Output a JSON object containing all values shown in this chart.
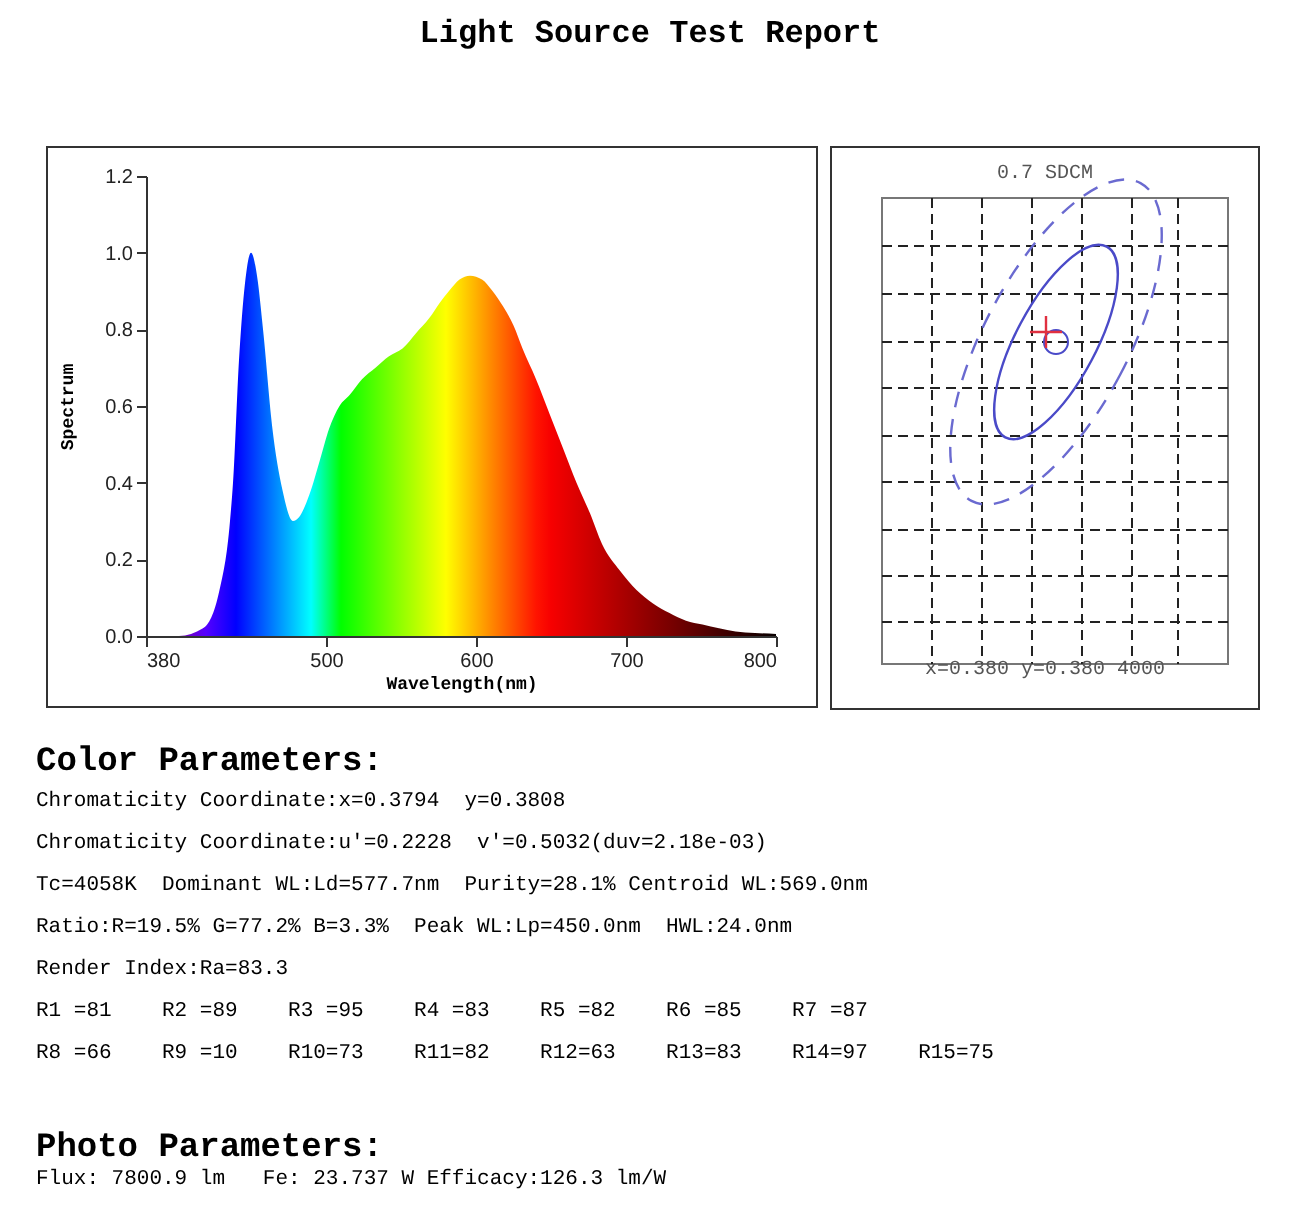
{
  "chart_data": [
    {
      "type": "area",
      "title": "Light Source Test Report",
      "xlabel": "Wavelength(nm)",
      "ylabel": "Spectrum",
      "x": [
        380,
        402,
        418,
        429,
        436,
        438,
        442,
        446,
        450,
        454,
        458,
        464,
        471,
        478,
        482,
        489,
        496,
        502,
        509,
        516,
        524,
        533,
        542,
        551,
        560,
        569,
        576,
        582,
        589,
        596,
        604,
        611,
        618,
        625,
        631,
        640,
        649,
        658,
        667,
        676,
        684,
        696,
        707,
        718,
        729,
        740,
        751,
        762,
        773,
        786,
        800
      ],
      "values": [
        0,
        0,
        0.02,
        0.12,
        0.3,
        0.4,
        0.72,
        0.92,
        1.0,
        0.94,
        0.8,
        0.55,
        0.38,
        0.3,
        0.31,
        0.37,
        0.46,
        0.54,
        0.6,
        0.63,
        0.67,
        0.7,
        0.73,
        0.75,
        0.79,
        0.83,
        0.87,
        0.9,
        0.93,
        0.94,
        0.93,
        0.9,
        0.86,
        0.81,
        0.75,
        0.67,
        0.58,
        0.49,
        0.4,
        0.32,
        0.24,
        0.17,
        0.12,
        0.085,
        0.06,
        0.04,
        0.03,
        0.02,
        0.012,
        0.008,
        0.005
      ],
      "xlim": [
        380,
        800
      ],
      "xticks": [
        380,
        500,
        600,
        700,
        800
      ],
      "ylim": [
        0,
        1.2
      ],
      "yticks": [
        {
          "value": 0,
          "label": "0.0"
        },
        {
          "value": 0.2,
          "label": "0.2"
        },
        {
          "value": 0.4,
          "label": "0.4"
        },
        {
          "value": 0.6,
          "label": "0.6"
        },
        {
          "value": 0.8,
          "label": "0.8"
        },
        {
          "value": 1,
          "label": "1.0"
        },
        {
          "value": 1.2,
          "label": "1.2"
        }
      ]
    },
    {
      "type": "other",
      "title": "0.7 SDCM",
      "annotations": [
        "x=0.380 y=0.380 4000"
      ]
    },
    {
      "type": "other",
      "title": "Color Parameters:",
      "annotations": [
        "Chromaticity Coordinate:x=0.3794  y=0.3808",
        "Chromaticity Coordinate:u'=0.2228  v'=0.5032(duv=2.18e-03)",
        "Tc=4058K  Dominant WL:Ld=577.7nm  Purity=28.1% Centroid WL:569.0nm",
        "Ratio:R=19.5% G=77.2% B=3.3%  Peak WL:Lp=450.0nm  HWL:24.0nm",
        "Render Index:Ra=83.3",
        "R1 =81    R2 =89    R3 =95    R4 =83    R5 =82    R6 =85    R7 =87",
        "R8 =66    R9 =10    R10=73    R11=82    R12=63    R13=83    R14=97    R15=75"
      ]
    },
    {
      "type": "other",
      "title": "Photo Parameters:",
      "annotations": [
        "Flux: 7800.9 lm   Fe: 23.737 W Efficacy:126.3 lm/W"
      ]
    }
  ]
}
